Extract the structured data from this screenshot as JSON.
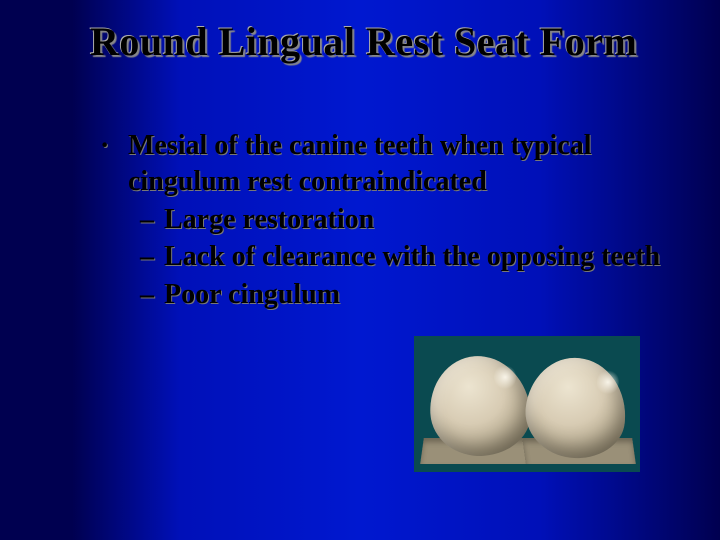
{
  "title": "Round Lingual Rest Seat Form",
  "bullet_mark": "·",
  "bullet_text": "Mesial of the canine teeth when typical cingulum rest contraindicated",
  "sub_mark": "–",
  "sub1": "Large restoration",
  "sub2": "Lack of clearance with the opposing teeth",
  "sub3": "Poor cingulum",
  "colors": {
    "bg_dark": "#000050",
    "bg_mid": "#0018d0",
    "photo_bg": "#0a4a50",
    "tooth_light": "#ece4d0",
    "tooth_dark": "#8a8068"
  }
}
